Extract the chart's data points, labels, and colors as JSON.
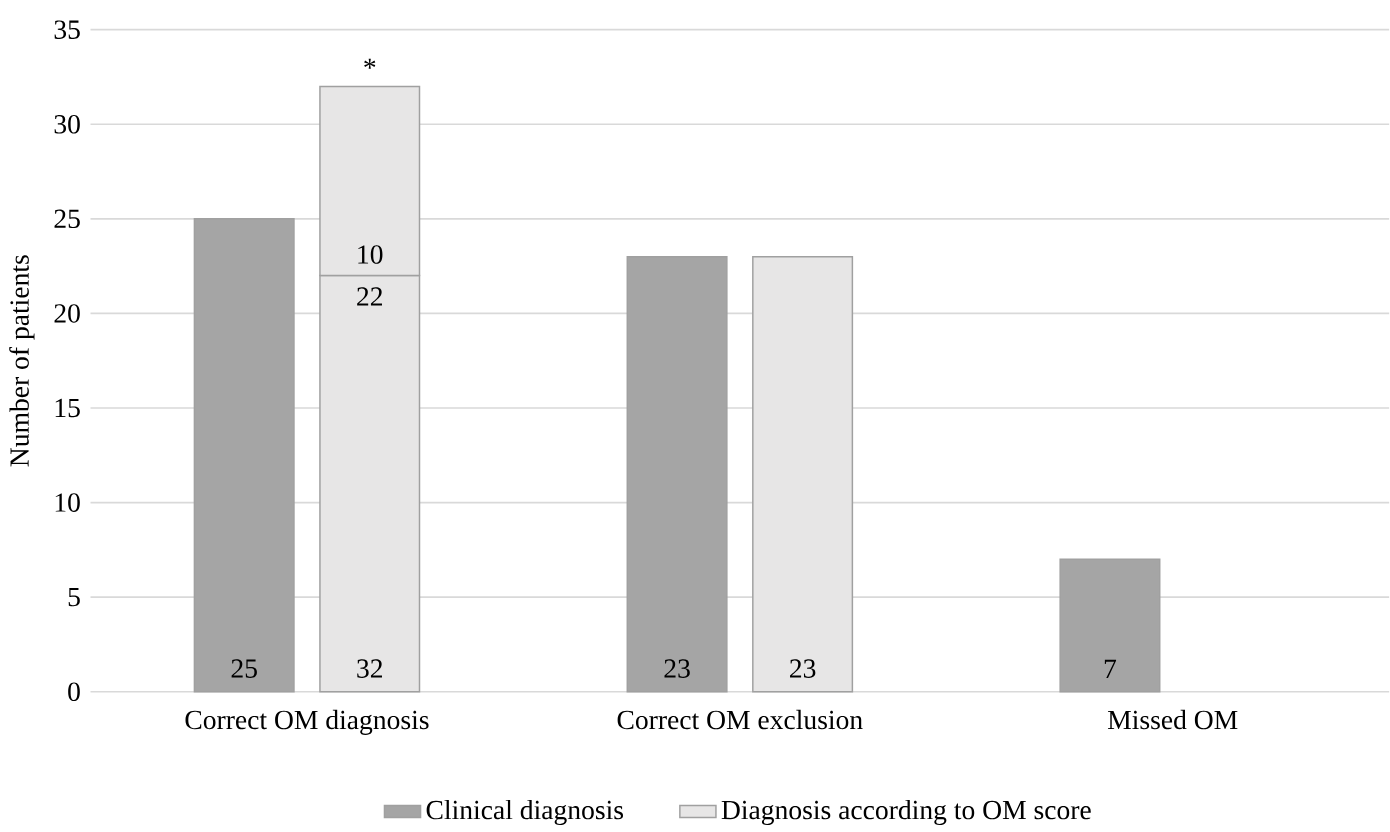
{
  "chart_data": {
    "type": "bar",
    "categories": [
      "Correct OM diagnosis",
      "Correct OM exclusion",
      "Missed OM"
    ],
    "ylabel": "Number of patients",
    "ylim": [
      0,
      35
    ],
    "yticks": [
      0,
      5,
      10,
      15,
      20,
      25,
      30,
      35
    ],
    "grid": "y",
    "legend": "bottom",
    "series": [
      {
        "name": "Clinical diagnosis",
        "color": "#a5a5a5",
        "values": [
          25,
          23,
          7
        ],
        "value_labels": [
          "25",
          "23",
          "7"
        ]
      },
      {
        "name": "Diagnosis according to OM score",
        "color": "#e7e6e6",
        "values": [
          22,
          23,
          null
        ],
        "value_labels": [
          "22",
          "23",
          null
        ]
      },
      {
        "color": "#e7e6e6",
        "values": [
          10,
          null,
          null
        ],
        "base": [
          22,
          null,
          null
        ],
        "value_labels": [
          "10",
          null,
          null
        ]
      }
    ],
    "annotations": [
      "*",
      "32"
    ]
  }
}
